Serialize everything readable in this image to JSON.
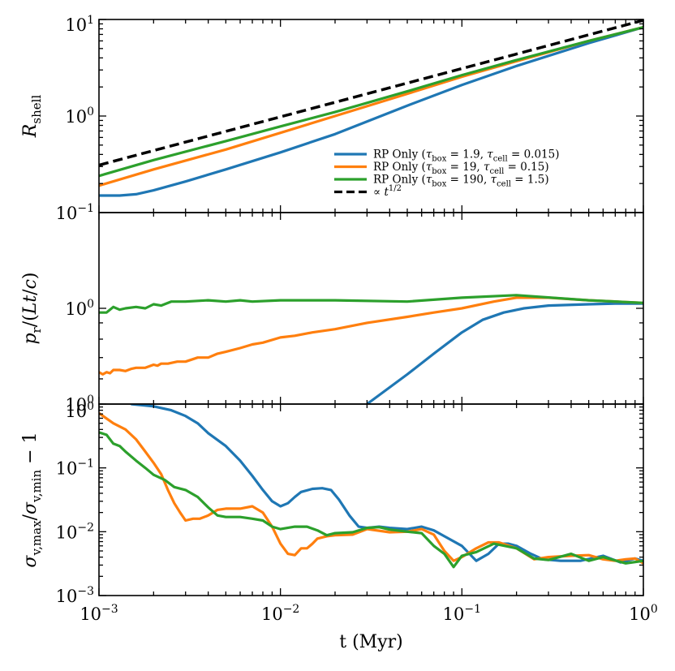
{
  "chart_data": {
    "type": "line",
    "xlabel": "t (Myr)",
    "xscale": "log",
    "xlim": [
      0.001,
      1
    ],
    "x_ticks": [
      {
        "base": "10",
        "exp": "−3"
      },
      {
        "base": "10",
        "exp": "−2"
      },
      {
        "base": "10",
        "exp": "−1"
      },
      {
        "base": "10",
        "exp": "0"
      }
    ],
    "colors": {
      "blue": "#1f77b4",
      "orange": "#ff7f0e",
      "green": "#2ca02c",
      "black": "#000000"
    },
    "panels": [
      {
        "id": "r-shell",
        "ylabel": "R_shell",
        "yscale": "log",
        "ylim": [
          0.1,
          10
        ],
        "y_ticks": [
          {
            "base": "10",
            "exp": "−1",
            "value": 0.1
          },
          {
            "base": "10",
            "exp": "0",
            "value": 1
          },
          {
            "base": "10",
            "exp": "1",
            "value": 10
          }
        ],
        "legend": {
          "location": "lower-right",
          "entries": [
            {
              "label": "RP Only (τbox = 1.9, τcell = 0.015)",
              "color": "#1f77b4",
              "style": "solid"
            },
            {
              "label": "RP Only (τbox = 19, τcell = 0.15)",
              "color": "#ff7f0e",
              "style": "solid"
            },
            {
              "label": "RP Only (τbox = 190, τcell = 1.5)",
              "color": "#2ca02c",
              "style": "solid"
            },
            {
              "label": "∝ t^1/2",
              "color": "#000000",
              "style": "dashed"
            }
          ]
        },
        "series": [
          {
            "name": "RP Only (τbox = 1.9, τcell = 0.015)",
            "color": "#1f77b4",
            "style": "solid",
            "x": [
              0.001,
              0.0013,
              0.0016,
              0.002,
              0.003,
              0.005,
              0.01,
              0.02,
              0.05,
              0.1,
              0.2,
              0.5,
              1.0
            ],
            "y": [
              0.15,
              0.15,
              0.155,
              0.17,
              0.21,
              0.28,
              0.42,
              0.65,
              1.28,
              2.1,
              3.3,
              5.7,
              8.3
            ]
          },
          {
            "name": "RP Only (τbox = 19, τcell = 0.15)",
            "color": "#ff7f0e",
            "style": "solid",
            "x": [
              0.001,
              0.002,
              0.005,
              0.01,
              0.02,
              0.05,
              0.1,
              0.2,
              0.5,
              1.0
            ],
            "y": [
              0.19,
              0.28,
              0.45,
              0.67,
              1.0,
              1.7,
              2.55,
              3.7,
              6.0,
              8.3
            ]
          },
          {
            "name": "RP Only (τbox = 190, τcell = 1.5)",
            "color": "#2ca02c",
            "style": "solid",
            "x": [
              0.001,
              0.002,
              0.005,
              0.01,
              0.02,
              0.05,
              0.1,
              0.2,
              0.5,
              1.0
            ],
            "y": [
              0.24,
              0.35,
              0.55,
              0.78,
              1.1,
              1.8,
              2.65,
              3.8,
              6.0,
              8.3
            ]
          },
          {
            "name": "∝ t^1/2",
            "color": "#000000",
            "style": "dashed",
            "x": [
              0.001,
              1.0
            ],
            "y": [
              0.31,
              9.8
            ]
          }
        ]
      },
      {
        "id": "momentum",
        "ylabel": "p_r/(Lt/c)",
        "yscale": "log",
        "ylim": [
          0.5,
          2.0
        ],
        "y_ticks": [
          {
            "base": "10",
            "exp": "0",
            "value": 1.0
          },
          {
            "base": "10",
            "exp": "0",
            "value": 0.5
          }
        ],
        "series": [
          {
            "name": "RP Only (τbox = 1.9, τcell = 0.015)",
            "color": "#1f77b4",
            "style": "solid",
            "x": [
              0.03,
              0.05,
              0.07,
              0.1,
              0.13,
              0.17,
              0.22,
              0.3,
              0.5,
              0.7,
              1.0
            ],
            "y": [
              0.5,
              0.62,
              0.72,
              0.84,
              0.92,
              0.97,
              1.0,
              1.02,
              1.03,
              1.035,
              1.035
            ]
          },
          {
            "name": "RP Only (τbox = 19, τcell = 0.15)",
            "color": "#ff7f0e",
            "style": "solid",
            "x": [
              0.001,
              0.00105,
              0.0011,
              0.00115,
              0.0012,
              0.0013,
              0.0014,
              0.0015,
              0.0016,
              0.0018,
              0.002,
              0.0021,
              0.0022,
              0.0024,
              0.0027,
              0.003,
              0.0035,
              0.004,
              0.0045,
              0.005,
              0.006,
              0.007,
              0.008,
              0.01,
              0.012,
              0.015,
              0.02,
              0.03,
              0.05,
              0.07,
              0.1,
              0.15,
              0.2,
              0.3,
              0.5,
              1.0
            ],
            "y": [
              0.63,
              0.62,
              0.63,
              0.625,
              0.64,
              0.64,
              0.635,
              0.645,
              0.65,
              0.65,
              0.665,
              0.66,
              0.67,
              0.67,
              0.68,
              0.68,
              0.7,
              0.7,
              0.72,
              0.73,
              0.75,
              0.77,
              0.78,
              0.81,
              0.82,
              0.84,
              0.86,
              0.9,
              0.94,
              0.97,
              1.0,
              1.05,
              1.08,
              1.08,
              1.06,
              1.04
            ]
          },
          {
            "name": "RP Only (τbox = 190, τcell = 1.5)",
            "color": "#2ca02c",
            "style": "solid",
            "x": [
              0.001,
              0.0011,
              0.0012,
              0.0013,
              0.0014,
              0.0016,
              0.0018,
              0.002,
              0.0022,
              0.0025,
              0.003,
              0.004,
              0.005,
              0.006,
              0.007,
              0.01,
              0.02,
              0.05,
              0.1,
              0.2,
              0.5,
              1.0
            ],
            "y": [
              0.97,
              0.97,
              1.01,
              0.99,
              1.0,
              1.01,
              1.0,
              1.03,
              1.02,
              1.05,
              1.05,
              1.06,
              1.05,
              1.06,
              1.05,
              1.06,
              1.06,
              1.05,
              1.08,
              1.1,
              1.06,
              1.04
            ]
          }
        ]
      },
      {
        "id": "sigma",
        "ylabel": "σv,max/σv,min − 1",
        "yscale": "log",
        "ylim": [
          0.001,
          1
        ],
        "y_ticks": [
          {
            "base": "10",
            "exp": "−3",
            "value": 0.001
          },
          {
            "base": "10",
            "exp": "−2",
            "value": 0.01
          },
          {
            "base": "10",
            "exp": "−1",
            "value": 0.1
          },
          {
            "base": "10",
            "exp": "0",
            "value": 1
          }
        ],
        "series": [
          {
            "name": "RP Only (τbox = 1.9, τcell = 0.015)",
            "color": "#1f77b4",
            "style": "solid",
            "x": [
              0.0015,
              0.002,
              0.0025,
              0.003,
              0.0035,
              0.004,
              0.005,
              0.006,
              0.007,
              0.008,
              0.009,
              0.01,
              0.011,
              0.012,
              0.013,
              0.015,
              0.017,
              0.019,
              0.021,
              0.024,
              0.027,
              0.03,
              0.035,
              0.04,
              0.05,
              0.06,
              0.07,
              0.08,
              0.1,
              0.12,
              0.14,
              0.16,
              0.18,
              0.2,
              0.24,
              0.28,
              0.35,
              0.45,
              0.6,
              0.75,
              0.9,
              1.0
            ],
            "y": [
              1.0,
              0.92,
              0.8,
              0.65,
              0.5,
              0.35,
              0.22,
              0.13,
              0.075,
              0.045,
              0.03,
              0.025,
              0.028,
              0.035,
              0.042,
              0.047,
              0.048,
              0.045,
              0.032,
              0.018,
              0.012,
              0.0115,
              0.012,
              0.0115,
              0.011,
              0.012,
              0.0105,
              0.0085,
              0.006,
              0.0035,
              0.0045,
              0.0065,
              0.0065,
              0.006,
              0.0045,
              0.0037,
              0.0035,
              0.0035,
              0.0042,
              0.0033,
              0.0038,
              0.0035
            ]
          },
          {
            "name": "RP Only (τbox = 19, τcell = 0.15)",
            "color": "#ff7f0e",
            "style": "solid",
            "x": [
              0.001,
              0.0012,
              0.0014,
              0.0016,
              0.0018,
              0.002,
              0.0022,
              0.0024,
              0.0026,
              0.0028,
              0.003,
              0.0033,
              0.0036,
              0.004,
              0.0045,
              0.005,
              0.006,
              0.007,
              0.008,
              0.009,
              0.01,
              0.011,
              0.012,
              0.013,
              0.014,
              0.015,
              0.016,
              0.018,
              0.02,
              0.025,
              0.03,
              0.04,
              0.05,
              0.06,
              0.07,
              0.08,
              0.09,
              0.1,
              0.12,
              0.14,
              0.16,
              0.2,
              0.25,
              0.3,
              0.4,
              0.5,
              0.6,
              0.7,
              0.8,
              0.9,
              1.0
            ],
            "y": [
              0.72,
              0.5,
              0.4,
              0.28,
              0.18,
              0.12,
              0.08,
              0.045,
              0.028,
              0.02,
              0.015,
              0.016,
              0.016,
              0.018,
              0.022,
              0.023,
              0.023,
              0.025,
              0.02,
              0.012,
              0.0065,
              0.0045,
              0.0043,
              0.0055,
              0.0055,
              0.0065,
              0.0078,
              0.0085,
              0.0088,
              0.009,
              0.011,
              0.0098,
              0.01,
              0.011,
              0.009,
              0.005,
              0.0035,
              0.004,
              0.0055,
              0.0068,
              0.0068,
              0.0055,
              0.0037,
              0.004,
              0.0042,
              0.0043,
              0.0037,
              0.0035,
              0.0037,
              0.0038,
              0.0032
            ]
          },
          {
            "name": "RP Only (τbox = 190, τcell = 1.5)",
            "color": "#2ca02c",
            "style": "solid",
            "x": [
              0.001,
              0.0011,
              0.0012,
              0.0013,
              0.0014,
              0.0016,
              0.0018,
              0.002,
              0.0023,
              0.0026,
              0.003,
              0.0035,
              0.004,
              0.0045,
              0.005,
              0.006,
              0.007,
              0.008,
              0.009,
              0.01,
              0.012,
              0.014,
              0.016,
              0.018,
              0.02,
              0.025,
              0.03,
              0.035,
              0.04,
              0.05,
              0.06,
              0.07,
              0.08,
              0.09,
              0.1,
              0.12,
              0.15,
              0.2,
              0.25,
              0.3,
              0.4,
              0.5,
              0.6,
              0.8,
              1.0
            ],
            "y": [
              0.36,
              0.33,
              0.24,
              0.22,
              0.18,
              0.13,
              0.1,
              0.078,
              0.065,
              0.05,
              0.045,
              0.035,
              0.024,
              0.018,
              0.017,
              0.017,
              0.016,
              0.015,
              0.012,
              0.011,
              0.012,
              0.012,
              0.0105,
              0.0088,
              0.0095,
              0.0098,
              0.0115,
              0.0118,
              0.0108,
              0.01,
              0.0095,
              0.006,
              0.0045,
              0.0028,
              0.0042,
              0.0048,
              0.0065,
              0.0055,
              0.0038,
              0.0036,
              0.0045,
              0.0035,
              0.004,
              0.0032,
              0.0035
            ]
          }
        ]
      }
    ]
  }
}
